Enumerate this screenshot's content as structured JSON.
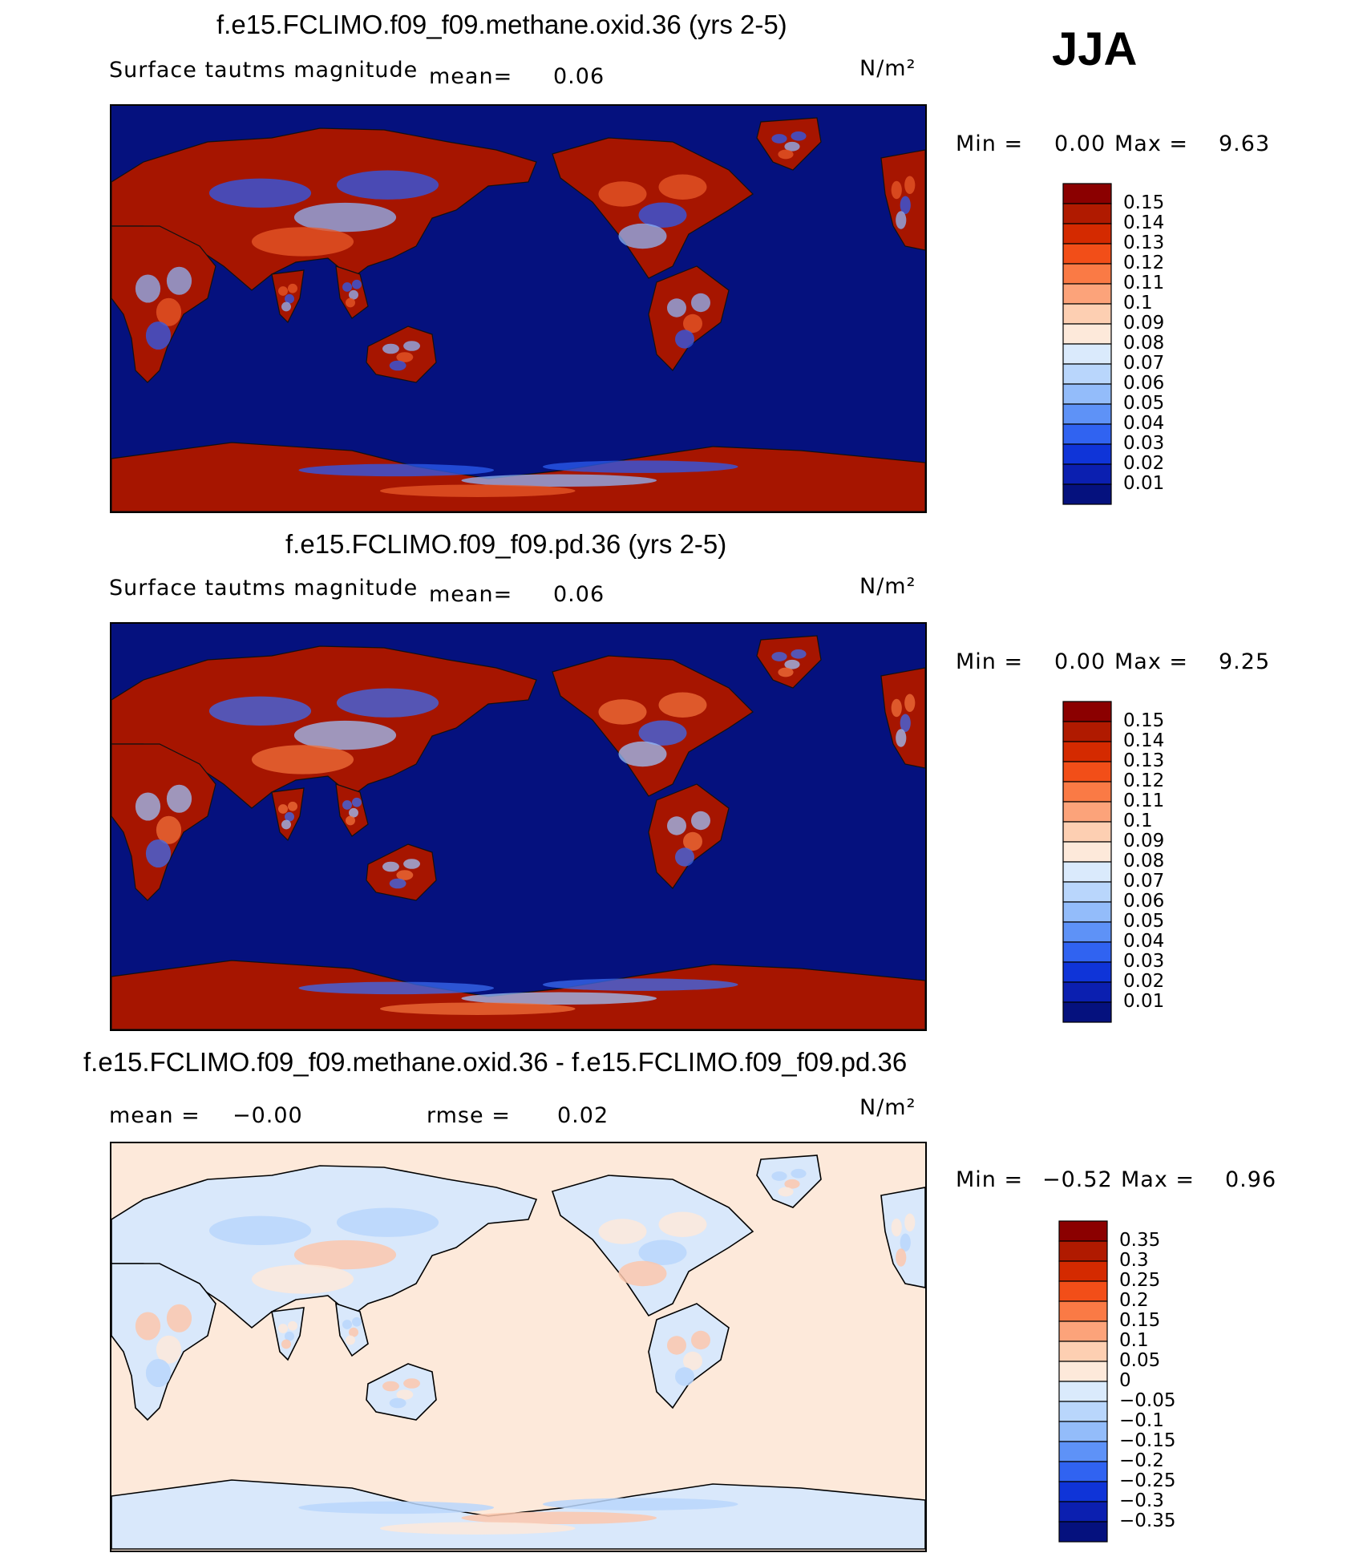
{
  "season": "JJA",
  "units": "N/m²",
  "panels": [
    {
      "title": "f.e15.FCLIMO.f09_f09.methane.oxid.36 (yrs 2-5)",
      "variable": "Surface tautms magnitude",
      "mean_label": "mean=",
      "mean_value": "0.06",
      "min_label": "Min =",
      "min_value": "0.00",
      "max_label": "Max =",
      "max_value": "9.63",
      "colorbar": [
        "0.15",
        "0.14",
        "0.13",
        "0.12",
        "0.11",
        "0.1",
        "0.09",
        "0.08",
        "0.07",
        "0.06",
        "0.05",
        "0.04",
        "0.03",
        "0.02",
        "0.01"
      ],
      "colors": [
        "#8b0000",
        "#b01a00",
        "#d42a00",
        "#f24e18",
        "#fa7a45",
        "#fca37a",
        "#fdcfb2",
        "#fde9da",
        "#daeafc",
        "#b9d6fc",
        "#93bcfa",
        "#5e92f7",
        "#3063f1",
        "#0f34d8",
        "#0b1fb0",
        "#05117e"
      ]
    },
    {
      "title": "f.e15.FCLIMO.f09_f09.pd.36 (yrs 2-5)",
      "variable": "Surface tautms magnitude",
      "mean_label": "mean=",
      "mean_value": "0.06",
      "min_label": "Min =",
      "min_value": "0.00",
      "max_label": "Max =",
      "max_value": "9.25",
      "colorbar": [
        "0.15",
        "0.14",
        "0.13",
        "0.12",
        "0.11",
        "0.1",
        "0.09",
        "0.08",
        "0.07",
        "0.06",
        "0.05",
        "0.04",
        "0.03",
        "0.02",
        "0.01"
      ],
      "colors": [
        "#8b0000",
        "#b01a00",
        "#d42a00",
        "#f24e18",
        "#fa7a45",
        "#fca37a",
        "#fdcfb2",
        "#fde9da",
        "#daeafc",
        "#b9d6fc",
        "#93bcfa",
        "#5e92f7",
        "#3063f1",
        "#0f34d8",
        "#0b1fb0",
        "#05117e"
      ]
    },
    {
      "title": "f.e15.FCLIMO.f09_f09.methane.oxid.36 - f.e15.FCLIMO.f09_f09.pd.36",
      "mean_label": "mean =",
      "mean_value": "−0.00",
      "rmse_label": "rmse =",
      "rmse_value": "0.02",
      "min_label": "Min =",
      "min_value": "−0.52",
      "max_label": "Max =",
      "max_value": "0.96",
      "colorbar": [
        "0.35",
        "0.3",
        "0.25",
        "0.2",
        "0.15",
        "0.1",
        "0.05",
        "0",
        "−0.05",
        "−0.1",
        "−0.15",
        "−0.2",
        "−0.25",
        "−0.3",
        "−0.35"
      ],
      "colors": [
        "#8b0000",
        "#b01a00",
        "#d42a00",
        "#f24e18",
        "#fa7a45",
        "#fca37a",
        "#fdcfb2",
        "#fde9da",
        "#daeafc",
        "#b9d6fc",
        "#93bcfa",
        "#5e92f7",
        "#3063f1",
        "#0f34d8",
        "#0b1fb0",
        "#05117e"
      ]
    }
  ],
  "chart_data": [
    {
      "type": "heatmap",
      "title": "f.e15.FCLIMO.f09_f09.methane.oxid.36 (yrs 2-5)",
      "field": "Surface tautms magnitude",
      "units": "N/m²",
      "mean": 0.06,
      "min": 0.0,
      "max": 9.63,
      "levels": [
        0.01,
        0.02,
        0.03,
        0.04,
        0.05,
        0.06,
        0.07,
        0.08,
        0.09,
        0.1,
        0.11,
        0.12,
        0.13,
        0.14,
        0.15
      ]
    },
    {
      "type": "heatmap",
      "title": "f.e15.FCLIMO.f09_f09.pd.36 (yrs 2-5)",
      "field": "Surface tautms magnitude",
      "units": "N/m²",
      "mean": 0.06,
      "min": 0.0,
      "max": 9.25,
      "levels": [
        0.01,
        0.02,
        0.03,
        0.04,
        0.05,
        0.06,
        0.07,
        0.08,
        0.09,
        0.1,
        0.11,
        0.12,
        0.13,
        0.14,
        0.15
      ]
    },
    {
      "type": "heatmap",
      "title": "f.e15.FCLIMO.f09_f09.methane.oxid.36 - f.e15.FCLIMO.f09_f09.pd.36",
      "units": "N/m²",
      "mean": -0.0,
      "rmse": 0.02,
      "min": -0.52,
      "max": 0.96,
      "levels": [
        -0.35,
        -0.3,
        -0.25,
        -0.2,
        -0.15,
        -0.1,
        -0.05,
        0,
        0.05,
        0.1,
        0.15,
        0.2,
        0.25,
        0.3,
        0.35
      ]
    }
  ]
}
